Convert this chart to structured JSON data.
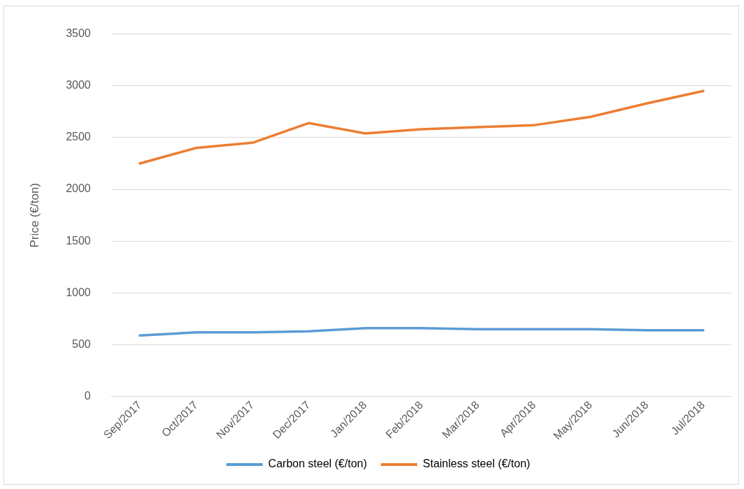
{
  "chart_data": {
    "type": "line",
    "ylabel": "Price (€/ton)",
    "categories": [
      "Sep/2017",
      "Oct/2017",
      "Nov/2017",
      "Dec/2017",
      "Jan/2018",
      "Feb/2018",
      "Mar/2018",
      "Apr/2018",
      "May/2018",
      "Jun/2018",
      "Jul/2018"
    ],
    "series": [
      {
        "name": "Carbon steel (€/ton)",
        "color": "#5b9bd5",
        "values": [
          590,
          620,
          620,
          630,
          660,
          660,
          650,
          650,
          650,
          640,
          640
        ]
      },
      {
        "name": "Stainless steel (€/ton)",
        "color": "#ed7d31",
        "values": [
          2250,
          2400,
          2450,
          2640,
          2540,
          2580,
          2600,
          2620,
          2700,
          2830,
          2950
        ]
      }
    ],
    "ylim": [
      0,
      3500
    ],
    "yticks": [
      0,
      500,
      1000,
      1500,
      2000,
      2500,
      3000,
      3500
    ],
    "grid": "y",
    "legend": "bottom",
    "marker": "none",
    "line_style": "solid"
  }
}
